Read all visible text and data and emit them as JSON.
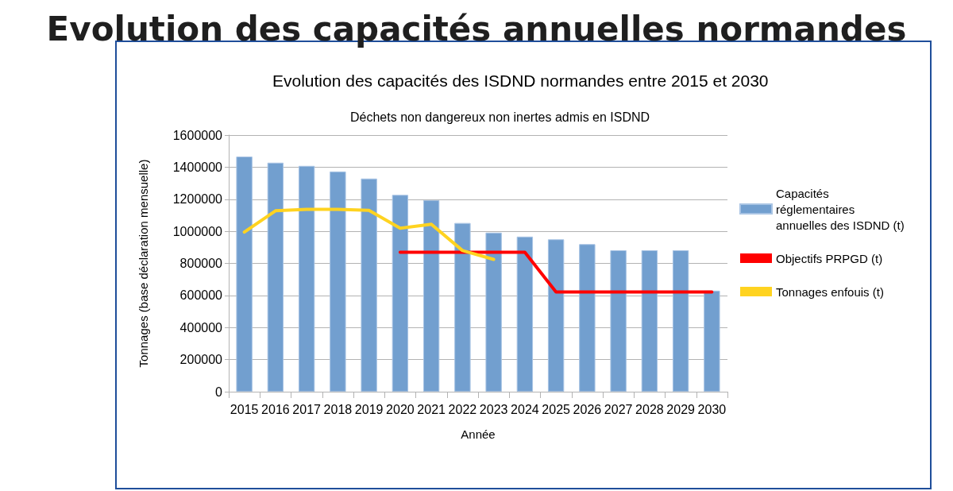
{
  "chart_data": {
    "type": "bar",
    "title": "Evolution des capacités annuelles normandes",
    "subtitle": "Evolution des capacités des ISDND normandes entre 2015 et 2030",
    "annotations": [
      "Déchets non dangereux non inertes admis en ISDND"
    ],
    "xlabel": "Année",
    "ylabel": "Tonnages (base déclaration mensuelle)",
    "categories": [
      "2015",
      "2016",
      "2017",
      "2018",
      "2019",
      "2020",
      "2021",
      "2022",
      "2023",
      "2024",
      "2025",
      "2026",
      "2027",
      "2028",
      "2029",
      "2030"
    ],
    "series": [
      {
        "name": "Capacités réglementaires annuelles des ISDND (t)",
        "color": "#729fcf",
        "values": [
          1466000,
          1428000,
          1408000,
          1373000,
          1329000,
          1227000,
          1194000,
          1052000,
          992000,
          967000,
          950000,
          920000,
          882000,
          882000,
          882000,
          630000
        ]
      },
      {
        "name": "Objectifs PRPGD (t)",
        "type": "line",
        "color": "#ff0000",
        "values": [
          null,
          null,
          null,
          null,
          null,
          869000,
          869000,
          869000,
          869000,
          869000,
          622000,
          622000,
          622000,
          622000,
          622000,
          622000
        ]
      },
      {
        "name": "Tonnages enfouis (t)",
        "type": "line",
        "color": "#ffd320",
        "values": [
          995000,
          1128000,
          1137000,
          1137000,
          1131000,
          1019000,
          1044000,
          880000,
          825000,
          null,
          null,
          null,
          null,
          null,
          null,
          null
        ]
      }
    ],
    "ylim": [
      0,
      1600000
    ],
    "yticks": [
      0,
      200000,
      400000,
      600000,
      800000,
      1000000,
      1200000,
      1400000,
      1600000
    ],
    "grid": "y",
    "legend": "right",
    "marker": "none",
    "line_style": "solid"
  }
}
